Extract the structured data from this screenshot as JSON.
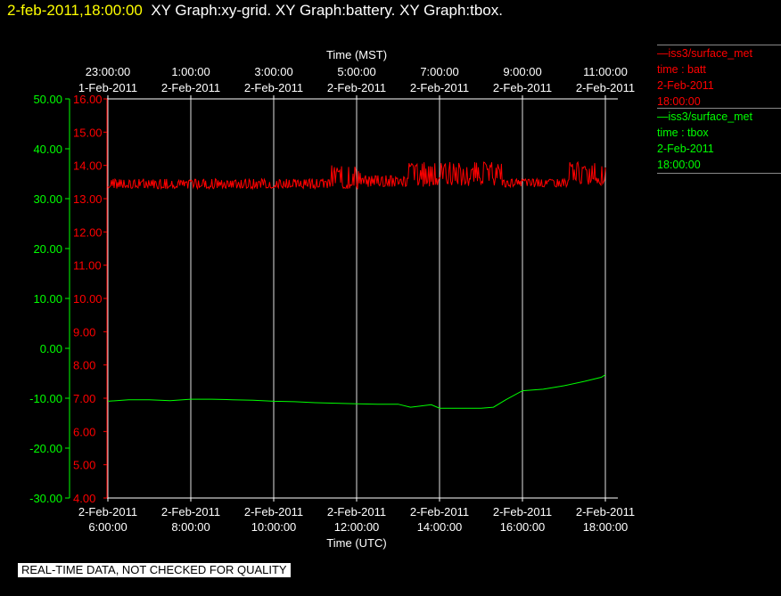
{
  "header": {
    "timestamp": "2-feb-2011,18:00:00",
    "titles": "XY Graph:xy-grid.  XY Graph:battery.  XY Graph:tbox."
  },
  "legend": [
    {
      "station": "—iss3/surface_met",
      "series": "time : batt",
      "date": "2-Feb-2011",
      "time": "18:00:00",
      "color": "#ff0000"
    },
    {
      "station": "—iss3/surface_met",
      "series": "time : tbox",
      "date": "2-Feb-2011",
      "time": "18:00:00",
      "color": "#00ff00"
    }
  ],
  "footer": "REAL-TIME DATA, NOT CHECKED FOR QUALITY",
  "chart_data": {
    "type": "line",
    "top_axis_title": "Time (MST)",
    "bottom_axis_title": "Time (UTC)",
    "x_range_utc_hours": [
      6,
      18
    ],
    "top_ticks": [
      {
        "t": "23:00:00",
        "d": "1-Feb-2011"
      },
      {
        "t": "1:00:00",
        "d": "2-Feb-2011"
      },
      {
        "t": "3:00:00",
        "d": "2-Feb-2011"
      },
      {
        "t": "5:00:00",
        "d": "2-Feb-2011"
      },
      {
        "t": "7:00:00",
        "d": "2-Feb-2011"
      },
      {
        "t": "9:00:00",
        "d": "2-Feb-2011"
      },
      {
        "t": "11:00:00",
        "d": "2-Feb-2011"
      }
    ],
    "bottom_ticks": [
      {
        "d": "2-Feb-2011",
        "t": "6:00:00"
      },
      {
        "d": "2-Feb-2011",
        "t": "8:00:00"
      },
      {
        "d": "2-Feb-2011",
        "t": "10:00:00"
      },
      {
        "d": "2-Feb-2011",
        "t": "12:00:00"
      },
      {
        "d": "2-Feb-2011",
        "t": "14:00:00"
      },
      {
        "d": "2-Feb-2011",
        "t": "16:00:00"
      },
      {
        "d": "2-Feb-2011",
        "t": "18:00:00"
      }
    ],
    "axes": {
      "tbox": {
        "range": [
          -30,
          50
        ],
        "ticks": [
          "50.00",
          "40.00",
          "30.00",
          "20.00",
          "10.00",
          "0.00",
          "-10.00",
          "-20.00",
          "-30.00"
        ],
        "color": "#00ff00"
      },
      "batt": {
        "range": [
          4,
          16
        ],
        "ticks": [
          "16.00",
          "15.00",
          "14.00",
          "13.00",
          "12.00",
          "11.00",
          "10.00",
          "9.00",
          "8.00",
          "7.00",
          "6.00",
          "5.00",
          "4.00"
        ],
        "color": "#ff0000"
      }
    },
    "series": [
      {
        "name": "time : batt",
        "color": "#ff0000",
        "band_hours": [
          6,
          11.35,
          11.35,
          12.1,
          12.1,
          13.25,
          13.25,
          15.5,
          15.5,
          17.1,
          17.1,
          18
        ],
        "band_low": [
          13.3,
          13.3,
          13.3,
          13.25,
          13.35,
          13.35,
          13.35,
          13.4,
          13.35,
          13.35,
          13.4,
          13.4
        ],
        "band_high": [
          13.6,
          13.6,
          14.0,
          14.0,
          13.7,
          13.7,
          14.1,
          14.1,
          13.6,
          13.6,
          14.1,
          14.1
        ]
      },
      {
        "name": "time : tbox",
        "color": "#00ff00",
        "x": [
          6,
          6.5,
          7,
          7.5,
          8,
          8.5,
          9,
          9.5,
          10,
          10.5,
          11,
          11.5,
          12,
          12.5,
          13,
          13.3,
          13.5,
          13.8,
          14,
          14.5,
          15,
          15.3,
          15.6,
          16,
          16.5,
          17,
          17.5,
          17.9,
          18
        ],
        "y": [
          -10.6,
          -10.3,
          -10.3,
          -10.5,
          -10.2,
          -10.2,
          -10.3,
          -10.4,
          -10.6,
          -10.7,
          -10.9,
          -11.0,
          -11.1,
          -11.2,
          -11.2,
          -11.8,
          -11.6,
          -11.3,
          -12.0,
          -12.0,
          -12.0,
          -11.8,
          -10.3,
          -8.5,
          -8.2,
          -7.5,
          -6.6,
          -5.8,
          -5.3
        ]
      }
    ]
  }
}
